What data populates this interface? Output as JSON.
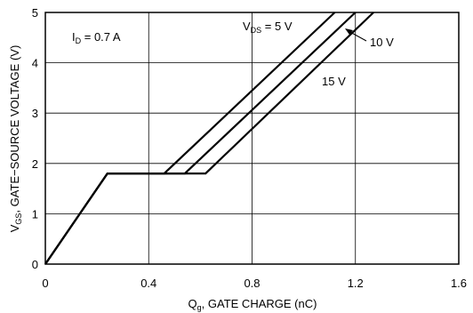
{
  "chart_data": {
    "type": "line",
    "xlabel": {
      "main": "Q",
      "sub": "g",
      "rest": ", GATE CHARGE (nC)"
    },
    "ylabel": {
      "main": "V",
      "sub": "GS",
      "rest": ", GATE−SOURCE VOLTAGE (V)"
    },
    "xlim": [
      0,
      1.6
    ],
    "ylim": [
      0,
      5
    ],
    "x_ticks": [
      "0",
      "0.4",
      "0.8",
      "1.2",
      "1.6"
    ],
    "y_ticks": [
      "0",
      "1",
      "2",
      "3",
      "4",
      "5"
    ],
    "grid": true,
    "condition": {
      "main": "I",
      "sub": "D",
      "rest": " = 0.7 A"
    },
    "series": [
      {
        "name": "VDS = 5 V",
        "x": [
          0,
          0.24,
          0.46,
          1.12
        ],
        "y": [
          0,
          1.8,
          1.8,
          5.0
        ]
      },
      {
        "name": "10 V",
        "x": [
          0,
          0.24,
          0.54,
          1.2
        ],
        "y": [
          0,
          1.8,
          1.8,
          5.0
        ]
      },
      {
        "name": "15 V",
        "x": [
          0,
          0.24,
          0.62,
          1.27
        ],
        "y": [
          0,
          1.8,
          1.8,
          5.0
        ]
      }
    ],
    "labels": {
      "s0": {
        "main": "V",
        "sub": "DS",
        "rest": " = 5 V"
      },
      "s1": "10 V",
      "s2": "15 V"
    }
  }
}
